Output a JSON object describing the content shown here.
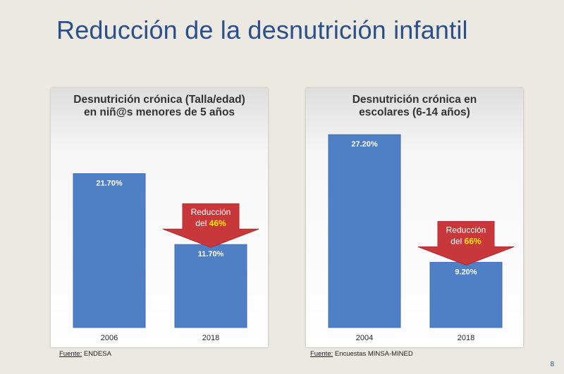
{
  "slide": {
    "title": "Reducción de la desnutrición infantil",
    "page_number": "8"
  },
  "colors": {
    "bar": "#4f7fc4",
    "bar_edge": "#3d6fb3",
    "arrow": "#c8383a",
    "highlight": "#ffea00",
    "title": "#2a4f8a"
  },
  "chart_data": [
    {
      "type": "bar",
      "title": "Desnutrición crónica (Talla/edad) en niñ@s menores de 5 años",
      "categories": [
        "2006",
        "2018"
      ],
      "values": [
        21.7,
        11.7
      ],
      "value_labels": [
        "21.70%",
        "11.70%"
      ],
      "ylim": [
        0,
        30
      ],
      "annotation": {
        "prefix": "Reducción",
        "line2": "del",
        "value": "46%"
      },
      "source_label": "Fuente:",
      "source": "ENDESA"
    },
    {
      "type": "bar",
      "title": "Desnutrición crónica en escolares (6-14 años)",
      "categories": [
        "2004",
        "2018"
      ],
      "values": [
        27.2,
        9.2
      ],
      "value_labels": [
        "27.20%",
        "9.20%"
      ],
      "ylim": [
        0,
        30
      ],
      "annotation": {
        "prefix": "Reducción",
        "line2": "del",
        "value": "66%"
      },
      "source_label": "Fuente:",
      "source": "Encuestas MINSA-MINED"
    }
  ]
}
